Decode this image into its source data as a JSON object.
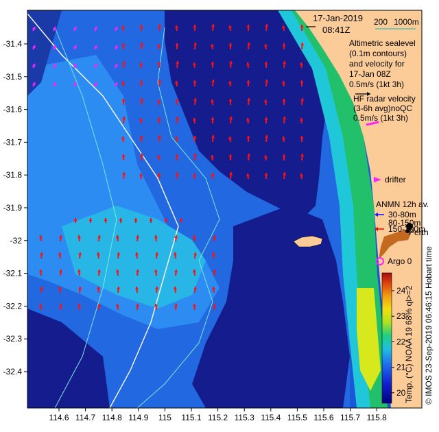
{
  "header": {
    "date": "17-Jan-2019",
    "time": "08:41Z"
  },
  "scale_bar": {
    "label_200": "200",
    "label_1000": "1000m"
  },
  "altimetry": {
    "lines": [
      "Altimetric sealevel",
      "(0.1m contours)",
      "and velocity for",
      "17-Jan 08Z"
    ],
    "scale_label": "0.5m/s (1kt 3h)"
  },
  "hf_radar": {
    "lines": [
      "HF radar velocity",
      "(3-6h avg)noQC"
    ],
    "scale_label": "0.5m/s (1kt 3h)"
  },
  "drifter": {
    "label": "drifter"
  },
  "anmn": {
    "title": "ANMN 12h av.",
    "items": [
      {
        "label": "30-80m",
        "color": "#1010ff"
      },
      {
        "label": "80-150m",
        "color": "#000000"
      },
      {
        "label": "150-300m",
        "color": "#ff0000"
      }
    ]
  },
  "perth": {
    "label": "Perth"
  },
  "argo": {
    "label": "Argo 0"
  },
  "credit": {
    "text": "© IMOS 23-Sep-2019 06:46:15 Hobart time"
  },
  "colorbar": {
    "title": "Temp. (°C) NOAA 19 68% ql>=2",
    "ticks": [
      "24",
      "23",
      "22",
      "21",
      "20"
    ]
  },
  "axes": {
    "x_ticks": [
      "114.6",
      "114.7",
      "114.8",
      "114.9",
      "115",
      "115.1",
      "115.2",
      "115.3",
      "115.4",
      "115.5",
      "115.6",
      "115.7",
      "115.8"
    ],
    "y_ticks": [
      "-31.4",
      "-31.5",
      "-31.6",
      "-31.7",
      "-31.8",
      "-31.9",
      "-32",
      "-32.1",
      "-32.2",
      "-32.3",
      "-32.4"
    ]
  },
  "colors": {
    "land": "#fbcb98",
    "deep_navy": "#101a8a",
    "mid_blue": "#1a56d8",
    "light_blue": "#2f8ff0",
    "cyan": "#1fc7d8",
    "green": "#22c06a",
    "yellow": "#d7e81c",
    "radar_arrow": "#ff1010",
    "drifter": "#ff20ff"
  }
}
